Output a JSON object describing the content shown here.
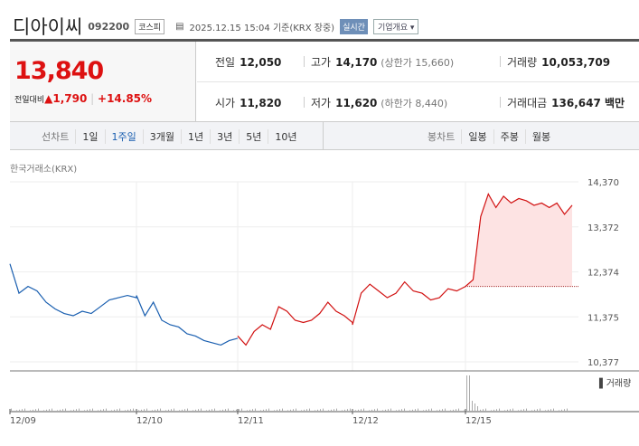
{
  "header": {
    "name": "디아이씨",
    "code": "092200",
    "market": "코스피",
    "datetime": "2025.12.15 15:04 기준(KRX 장중)",
    "realtime": "실시간",
    "company_info": "기업개요 ▾"
  },
  "price": {
    "current": "13,840",
    "change_label": "전일대비",
    "change": "▲1,790",
    "change_pct": "+14.85%"
  },
  "stats": {
    "prev_close": {
      "label": "전일",
      "value": "12,050"
    },
    "high": {
      "label": "고가",
      "value": "14,170",
      "extra": "(상한가 15,660)"
    },
    "volume": {
      "label": "거래량",
      "value": "10,053,709"
    },
    "open": {
      "label": "시가",
      "value": "11,820"
    },
    "low": {
      "label": "저가",
      "value": "11,620",
      "extra": "(하한가 8,440)"
    },
    "amount": {
      "label": "거래대금",
      "value": "136,647 백만"
    }
  },
  "tabs": {
    "line_label": "선차트",
    "line": [
      "1일",
      "1주일",
      "3개월",
      "1년",
      "3년",
      "5년",
      "10년"
    ],
    "active": "1주일",
    "candle_label": "봉차트",
    "candle": [
      "일봉",
      "주봉",
      "월봉"
    ]
  },
  "source": "한국거래소(KRX)",
  "colors": {
    "up": "#d11111",
    "down": "#1a5fb0"
  },
  "chart_data": {
    "type": "line",
    "x_ticks": [
      "12/09",
      "12/10",
      "12/11",
      "12/12",
      "12/15"
    ],
    "y_ticks": [
      "14,370",
      "13,372",
      "12,374",
      "11,375",
      "10,377"
    ],
    "ylim": [
      10377,
      14370
    ],
    "prev_close": 12050,
    "volume_legend": "거래량",
    "series": [
      {
        "day": "12/09",
        "values": [
          12550,
          11900,
          12050,
          11950,
          11700,
          11550,
          11450,
          11400,
          11500,
          11450,
          11600,
          11750,
          11800,
          11850,
          11800
        ]
      },
      {
        "day": "12/10",
        "values": [
          11850,
          11400,
          11700,
          11300,
          11200,
          11150,
          11000,
          10950,
          10850,
          10800,
          10750,
          10850,
          10900
        ]
      },
      {
        "day": "12/11",
        "values": [
          10950,
          10750,
          11050,
          11200,
          11100,
          11600,
          11500,
          11300,
          11250,
          11300,
          11450,
          11700,
          11500,
          11400,
          11250
        ]
      },
      {
        "day": "12/12",
        "values": [
          11200,
          11900,
          12100,
          11950,
          11800,
          11900,
          12150,
          11950,
          11900,
          11750,
          11800,
          12000,
          11950,
          12050
        ]
      },
      {
        "day": "12/15",
        "values": [
          12050,
          12200,
          13600,
          14100,
          13800,
          14050,
          13900,
          14000,
          13950,
          13850,
          13900,
          13800,
          13900,
          13650,
          13850
        ]
      }
    ]
  }
}
